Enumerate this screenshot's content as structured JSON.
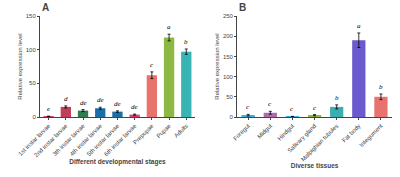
{
  "chart_data": [
    {
      "type": "bar",
      "title": "A",
      "categories": [
        "1st instar larvae",
        "2nd instar larvae",
        "3th instar larvae",
        "4th instar larvae",
        "5th instar larvae",
        "6th instar larvae",
        "Prepupae",
        "Pupae",
        "Adults"
      ],
      "values": [
        1.0,
        15.0,
        9.5,
        13.0,
        8.0,
        3.5,
        62.0,
        118.0,
        97.0
      ],
      "errors": [
        0.3,
        1.5,
        1.5,
        1.5,
        1.2,
        0.8,
        5.0,
        5.0,
        4.0
      ],
      "colors": [
        "#d63f6e",
        "#c0405c",
        "#2e7d4e",
        "#1b6fa8",
        "#1b6fa8",
        "#d63f6e",
        "#e8736e",
        "#8db843",
        "#39b4b4"
      ],
      "annotations": [
        {
          "x": "1st instar larvae",
          "text": "e"
        },
        {
          "x": "2nd instar larvae",
          "text": "d"
        },
        {
          "x": "3th instar larvae",
          "text": "de"
        },
        {
          "x": "4th instar larvae",
          "text": "de"
        },
        {
          "x": "5th instar larvae",
          "text": "de"
        },
        {
          "x": "6th instar larvae",
          "text": "de"
        },
        {
          "x": "Prepupae",
          "text": "c"
        },
        {
          "x": "Pupae",
          "text": "a"
        },
        {
          "x": "Adults",
          "text": "b"
        }
      ],
      "x_label": "Different developmental stages",
      "y_label": "Relative expression level",
      "ylim": [
        0,
        150
      ],
      "yticks": [
        0,
        50,
        100,
        150
      ],
      "grid": false
    },
    {
      "type": "bar",
      "title": "B",
      "categories": [
        "Foregut",
        "Midgut",
        "Hindgut",
        "Salivary gland",
        "Malpighian tubules",
        "Fat body",
        "Integument"
      ],
      "values": [
        4.5,
        10.5,
        1.2,
        4.5,
        25.0,
        190.0,
        50.0
      ],
      "errors": [
        2.0,
        3.5,
        0.4,
        1.5,
        5.0,
        18.0,
        7.0
      ],
      "colors": [
        "#39b4d8",
        "#b06bb0",
        "#39b4d8",
        "#8db843",
        "#39afb0",
        "#6a5acd",
        "#e8736e"
      ],
      "annotations": [
        {
          "x": "Foregut",
          "text": "c"
        },
        {
          "x": "Midgut",
          "text": "c"
        },
        {
          "x": "Hindgut",
          "text": "c"
        },
        {
          "x": "Salivary gland",
          "text": "c"
        },
        {
          "x": "Malpighian tubules",
          "text": "b"
        },
        {
          "x": "Fat body",
          "text": "a"
        },
        {
          "x": "Integument",
          "text": "b"
        }
      ],
      "x_label": "Diverse tissues",
      "y_label": "Relative expression level",
      "ylim": [
        0,
        250
      ],
      "yticks": [
        0,
        50,
        100,
        150,
        200,
        250
      ],
      "grid": false
    }
  ]
}
